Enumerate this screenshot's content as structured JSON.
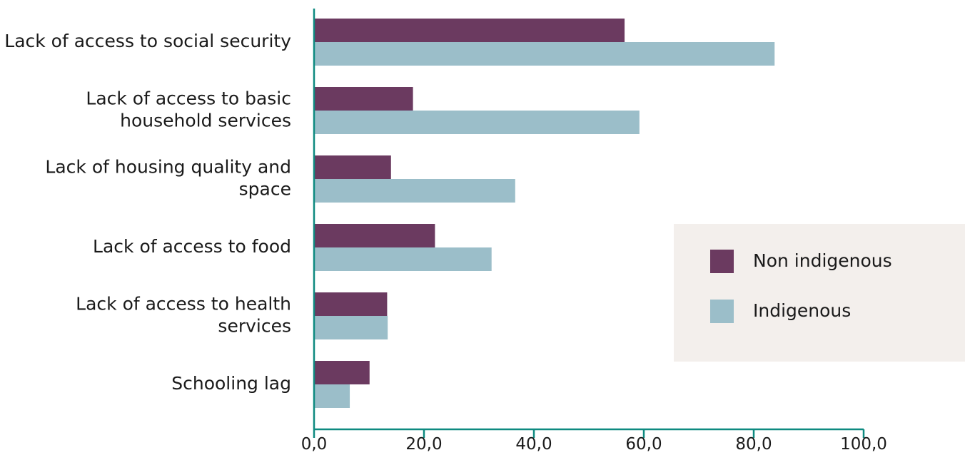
{
  "chart_data": {
    "type": "bar",
    "orientation": "horizontal",
    "categories": [
      [
        "Lack of access to social security"
      ],
      [
        "Lack of access to basic",
        "household services"
      ],
      [
        "Lack of housing quality and",
        "space"
      ],
      [
        "Lack of access to food"
      ],
      [
        "Lack of access to health",
        "services"
      ],
      [
        "Schooling lag"
      ]
    ],
    "series": [
      {
        "name": "Non indigenous",
        "color": "#6b3a60",
        "values": [
          56.5,
          18.0,
          14.0,
          22.0,
          13.3,
          10.1
        ]
      },
      {
        "name": "Indigenous",
        "color": "#9bbec9",
        "values": [
          83.8,
          59.2,
          36.6,
          32.3,
          13.4,
          6.5
        ]
      }
    ],
    "xlim": [
      0,
      100
    ],
    "xticks": [
      0,
      20,
      40,
      60,
      80,
      100
    ],
    "xtick_labels": [
      "0,0",
      "20,0",
      "40,0",
      "60,0",
      "80,0",
      "100,0"
    ],
    "axis_color": "#0e8a80",
    "legend": {
      "position": "right",
      "background": "#f3efec"
    },
    "grid": false
  }
}
